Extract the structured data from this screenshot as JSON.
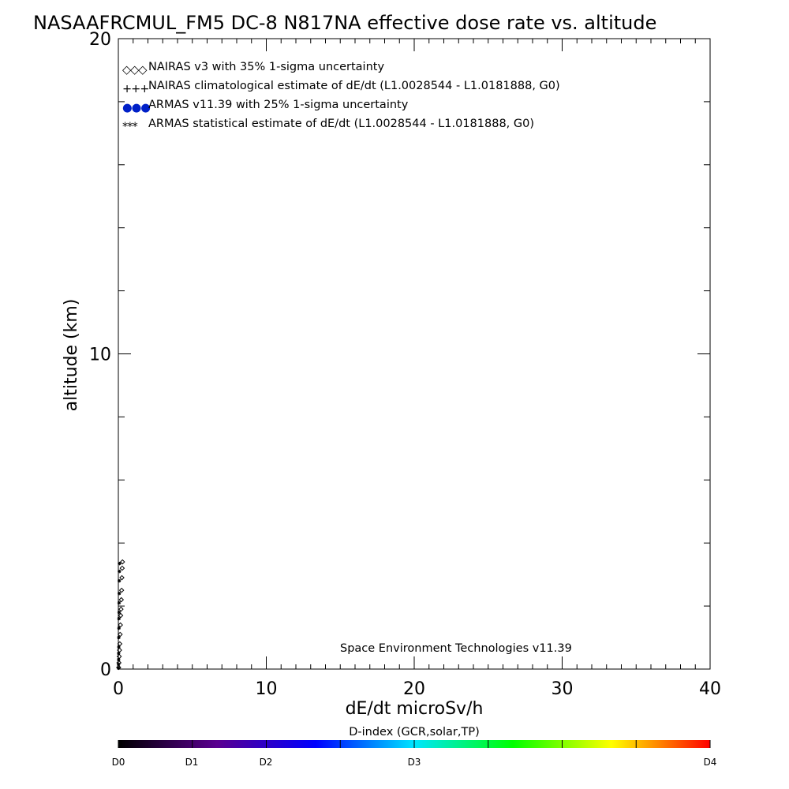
{
  "page_title": "NASAAFRCMUL_FM5 DC-8   N817NA effective dose rate vs. altitude",
  "credit": "Space Environment Technologies v11.39",
  "colorbar": {
    "title": "D-index (GCR,solar,TP)",
    "labels": [
      "D0",
      "D1",
      "D2",
      "D3",
      "D4"
    ],
    "label_values": [
      0,
      0.5,
      1.0,
      2.0,
      4.0
    ],
    "colors": [
      "#000000",
      "#5a0090",
      "#0000ff",
      "#00e6ff",
      "#00ff00",
      "#ffff00",
      "#ff0000"
    ]
  },
  "chart_data": {
    "type": "scatter",
    "title": "NASAAFRCMUL_FM5 DC-8   N817NA effective dose rate vs. altitude",
    "xlabel": "dE/dt microSv/h",
    "ylabel": "altitude (km)",
    "xlim": [
      0,
      40
    ],
    "ylim": [
      0,
      20
    ],
    "x_ticks": [
      0,
      10,
      20,
      30,
      40
    ],
    "x_tick_labels": [
      "0",
      "10",
      "20",
      "30",
      "40"
    ],
    "y_ticks": [
      0,
      10,
      20
    ],
    "y_tick_labels": [
      "0",
      "10",
      "20"
    ],
    "legend_position": "top-left",
    "legend": [
      {
        "symbol": "◇◇◇",
        "label": "NAIRAS v3 with 35% 1-sigma uncertainty",
        "color": "#000000"
      },
      {
        "symbol": "+++",
        "label": "NAIRAS climatological estimate of dE/dt (L1.0028544 - L1.0181888, G0)",
        "color": "#000000"
      },
      {
        "symbol": "●●●",
        "label": "ARMAS v11.39 with 25% 1-sigma uncertainty",
        "color": "#0020c8"
      },
      {
        "symbol": "***",
        "label": "ARMAS statistical estimate of dE/dt (L1.0028544 - L1.0181888, G0)",
        "color": "#000000"
      }
    ],
    "series": [
      {
        "name": "NAIRAS v3 with 35% 1-sigma uncertainty",
        "marker": "diamond",
        "x": [
          0.28,
          0.26,
          0.24,
          0.22,
          0.2,
          0.18,
          0.16,
          0.14,
          0.12,
          0.1,
          0.08,
          0.06,
          0.04,
          0.02
        ],
        "y": [
          3.4,
          3.2,
          2.9,
          2.5,
          2.2,
          1.9,
          1.7,
          1.4,
          1.1,
          0.8,
          0.6,
          0.4,
          0.2,
          0.05
        ]
      },
      {
        "name": "ARMAS statistical estimate of dE/dt (L1.0028544 - L1.0181888, G0)",
        "marker": "asterisk",
        "x": [
          0.08,
          0.07,
          0.06,
          0.06,
          0.05,
          0.05,
          0.04,
          0.04,
          0.03,
          0.03,
          0.02,
          0.02,
          0.01,
          0.01
        ],
        "y": [
          3.35,
          3.1,
          2.8,
          2.4,
          2.1,
          1.8,
          1.6,
          1.3,
          1.0,
          0.7,
          0.5,
          0.3,
          0.15,
          0.03
        ]
      }
    ]
  }
}
